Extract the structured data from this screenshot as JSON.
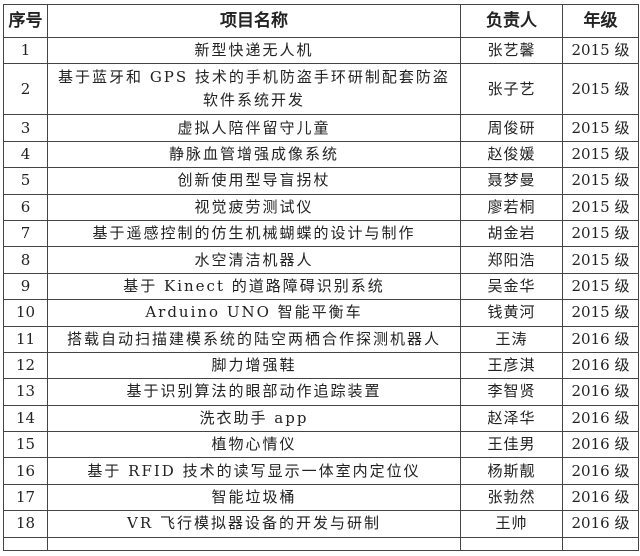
{
  "headers": {
    "index": "序号",
    "name": "项目名称",
    "leader": "负责人",
    "grade": "年级"
  },
  "rows": [
    {
      "index": "1",
      "name": "新型快递无人机",
      "leader": "张艺馨",
      "grade": "2015 级"
    },
    {
      "index": "2",
      "name": "基于蓝牙和 GPS 技术的手机防盗手环研制配套防盗软件系统开发",
      "leader": "张子艺",
      "grade": "2015 级"
    },
    {
      "index": "3",
      "name": "虚拟人陪伴留守儿童",
      "leader": "周俊研",
      "grade": "2015 级"
    },
    {
      "index": "4",
      "name": "静脉血管增强成像系统",
      "leader": "赵俊媛",
      "grade": "2015 级"
    },
    {
      "index": "5",
      "name": "创新使用型导盲拐杖",
      "leader": "聂梦曼",
      "grade": "2015 级"
    },
    {
      "index": "6",
      "name": "视觉疲劳测试仪",
      "leader": "廖若桐",
      "grade": "2015 级"
    },
    {
      "index": "7",
      "name": "基于遥感控制的仿生机械蝴蝶的设计与制作",
      "leader": "胡金岩",
      "grade": "2015 级"
    },
    {
      "index": "8",
      "name": "水空清洁机器人",
      "leader": "郑阳浩",
      "grade": "2015 级"
    },
    {
      "index": "9",
      "name": "基于 Kinect 的道路障碍识别系统",
      "leader": "吴金华",
      "grade": "2015 级"
    },
    {
      "index": "10",
      "name": "Arduino UNO 智能平衡车",
      "leader": "钱黄河",
      "grade": "2015 级"
    },
    {
      "index": "11",
      "name": "搭载自动扫描建模系统的陆空两栖合作探测机器人",
      "leader": "王涛",
      "grade": "2016 级"
    },
    {
      "index": "12",
      "name": "脚力增强鞋",
      "leader": "王彦淇",
      "grade": "2016 级"
    },
    {
      "index": "13",
      "name": "基于识别算法的眼部动作追踪装置",
      "leader": "李智贤",
      "grade": "2016 级"
    },
    {
      "index": "14",
      "name": "洗衣助手 app",
      "leader": "赵泽华",
      "grade": "2016 级"
    },
    {
      "index": "15",
      "name": "植物心情仪",
      "leader": "王佳男",
      "grade": "2016 级"
    },
    {
      "index": "16",
      "name": "基于 RFID 技术的读写显示一体室内定位仪",
      "leader": "杨斯靓",
      "grade": "2016 级"
    },
    {
      "index": "17",
      "name": "智能垃圾桶",
      "leader": "张勃然",
      "grade": "2016 级"
    },
    {
      "index": "18",
      "name": "VR 飞行模拟器设备的开发与研制",
      "leader": "王帅",
      "grade": "2016 级"
    }
  ]
}
